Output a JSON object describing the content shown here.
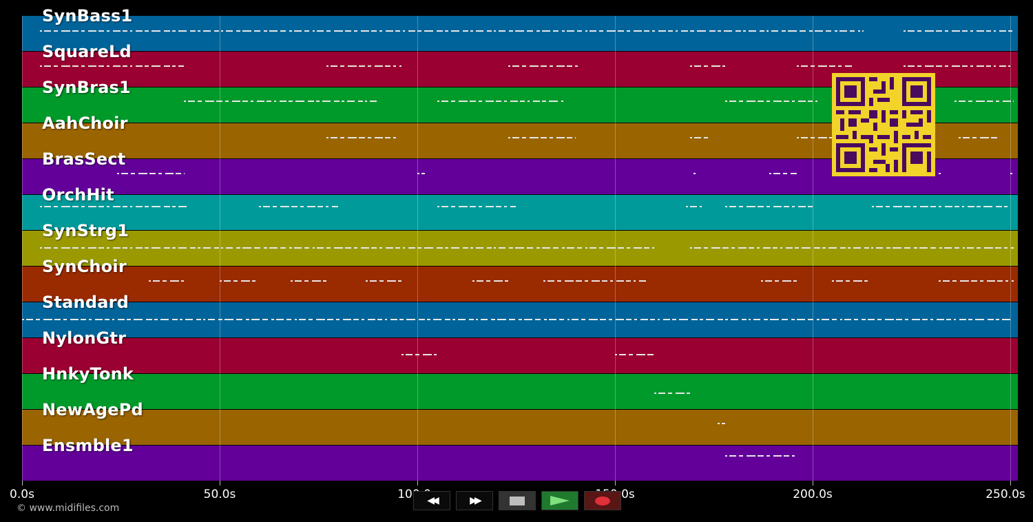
{
  "tracks": [
    {
      "name": "SynBass1",
      "color": "#00649a"
    },
    {
      "name": "SquareLd",
      "color": "#9a0031"
    },
    {
      "name": "SynBras1",
      "color": "#009a2a"
    },
    {
      "name": "AahChoir",
      "color": "#9a6400"
    },
    {
      "name": "BrasSect",
      "color": "#64009a"
    },
    {
      "name": "OrchHit",
      "color": "#009a9a"
    },
    {
      "name": "SynStrg1",
      "color": "#9a9a00"
    },
    {
      "name": "SynChoir",
      "color": "#9a2a00"
    },
    {
      "name": "Standard",
      "color": "#00649a"
    },
    {
      "name": "NylonGtr",
      "color": "#9a0031"
    },
    {
      "name": "HnkyTonk",
      "color": "#009a2a"
    },
    {
      "name": "NewAgePd",
      "color": "#9a6400"
    },
    {
      "name": "Ensmble1",
      "color": "#64009a"
    }
  ],
  "timeline": {
    "max_seconds": 252,
    "ticks": [
      {
        "value": 0,
        "label": "0.0s"
      },
      {
        "value": 50,
        "label": "50.0s"
      },
      {
        "value": 100,
        "label": "100.0s"
      },
      {
        "value": 150,
        "label": "150.0s"
      },
      {
        "value": 200,
        "label": "200.0s"
      },
      {
        "value": 250,
        "label": "250.0s"
      }
    ]
  },
  "notes": [
    {
      "track": 0,
      "ranges": [
        [
          4.5,
          213
        ],
        [
          223,
          251
        ]
      ],
      "pitch": 0.45
    },
    {
      "track": 1,
      "ranges": [
        [
          4.5,
          41
        ],
        [
          77,
          96
        ],
        [
          123,
          141
        ],
        [
          169,
          178
        ],
        [
          196,
          210
        ],
        [
          223,
          250
        ]
      ],
      "pitch": 0.42
    },
    {
      "track": 2,
      "ranges": [
        [
          41,
          90
        ],
        [
          105,
          137
        ],
        [
          178,
          202
        ],
        [
          236,
          251
        ]
      ],
      "pitch": 0.4
    },
    {
      "track": 3,
      "ranges": [
        [
          77,
          95
        ],
        [
          123,
          140
        ],
        [
          169,
          174
        ],
        [
          196,
          220
        ],
        [
          237,
          247
        ]
      ],
      "pitch": 0.42
    },
    {
      "track": 4,
      "ranges": [
        [
          24,
          41
        ],
        [
          100,
          102
        ],
        [
          170,
          171
        ],
        [
          189,
          196
        ],
        [
          232,
          233
        ],
        [
          250,
          251
        ]
      ],
      "pitch": 0.42
    },
    {
      "track": 5,
      "ranges": [
        [
          4.5,
          42
        ],
        [
          60,
          80
        ],
        [
          105,
          125
        ],
        [
          168,
          172
        ],
        [
          178,
          200
        ],
        [
          215,
          250
        ]
      ],
      "pitch": 0.35
    },
    {
      "track": 6,
      "ranges": [
        [
          4.5,
          160
        ],
        [
          169,
          251
        ]
      ],
      "pitch": 0.5
    },
    {
      "track": 7,
      "ranges": [
        [
          32,
          41
        ],
        [
          50,
          59
        ],
        [
          68,
          77
        ],
        [
          87,
          96
        ],
        [
          114,
          123
        ],
        [
          132,
          158
        ],
        [
          187,
          196
        ],
        [
          205,
          214
        ],
        [
          232,
          251
        ]
      ],
      "pitch": 0.42
    },
    {
      "track": 8,
      "ranges": [
        [
          0,
          213
        ],
        [
          213,
          251
        ]
      ],
      "pitch": 0.5
    },
    {
      "track": 9,
      "ranges": [
        [
          96,
          105
        ],
        [
          150,
          160
        ]
      ],
      "pitch": 0.48
    },
    {
      "track": 10,
      "ranges": [
        [
          160,
          169
        ]
      ],
      "pitch": 0.55
    },
    {
      "track": 11,
      "ranges": [
        [
          176,
          178
        ]
      ],
      "pitch": 0.4
    },
    {
      "track": 12,
      "ranges": [
        [
          178,
          196
        ]
      ],
      "pitch": 0.3
    }
  ],
  "transport": {
    "rewind": "◀◀",
    "forward": "▶▶"
  },
  "credit": "© www.midifiles.com"
}
